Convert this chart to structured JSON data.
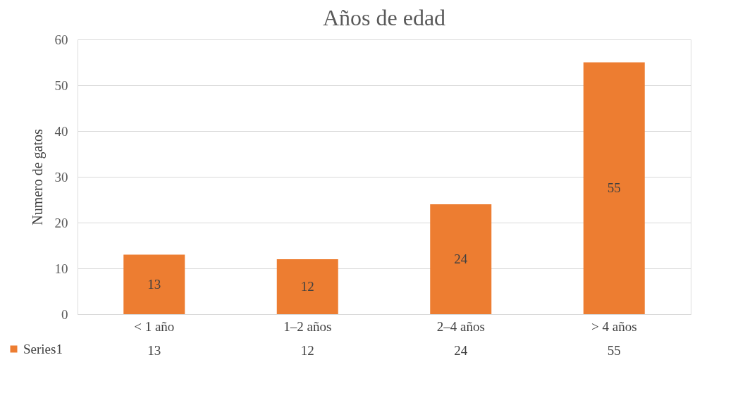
{
  "chart_data": {
    "type": "bar",
    "title": "Años de edad",
    "ylabel": "Numero de gatos",
    "categories": [
      "< 1 año",
      "1–2 años",
      "2–4 años",
      "> 4 años"
    ],
    "series": [
      {
        "name": "Series1",
        "color": "#ed7d31",
        "values": [
          13,
          12,
          24,
          55
        ],
        "value_labels": [
          "13",
          "12",
          "24",
          "55"
        ]
      }
    ],
    "ylim": [
      0,
      60
    ],
    "yticks": [
      0,
      10,
      20,
      30,
      40,
      50,
      60
    ],
    "annotations": [
      "13",
      "12",
      "24",
      "55"
    ],
    "grid": "y",
    "legend": "bottom left",
    "data_labels": true
  }
}
